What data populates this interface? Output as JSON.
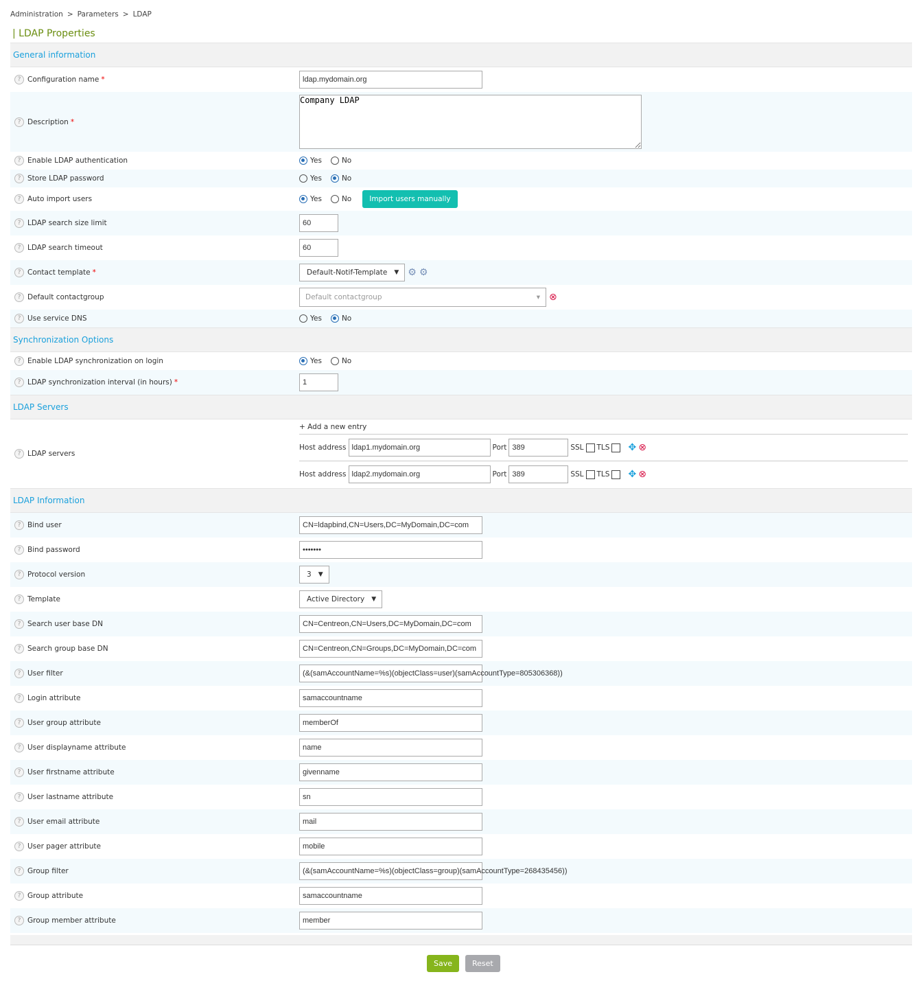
{
  "breadcrumb": [
    "Administration",
    "Parameters",
    "LDAP"
  ],
  "page_title": "| LDAP Properties",
  "colors": {
    "section": "#1aa0dc",
    "title": "#6a8d0f",
    "import_button": "#13bfb0",
    "save": "#86b51c",
    "reset": "#a8a9ad",
    "delete": "#d8194a"
  },
  "sections": [
    {
      "title": "General information",
      "rows": [
        {
          "label": "Configuration name",
          "required": true,
          "type": "text",
          "value": "ldap.mydomain.org",
          "w": 267,
          "h": 36
        },
        {
          "label": "Description",
          "required": true,
          "type": "textarea",
          "value": "Company LDAP",
          "h": 87
        },
        {
          "label": "Enable LDAP authentication",
          "type": "radio",
          "options": [
            "Yes",
            "No"
          ],
          "selected": "Yes",
          "h": 26
        },
        {
          "label": "Store LDAP password",
          "type": "radio",
          "options": [
            "Yes",
            "No"
          ],
          "selected": "No",
          "h": 26
        },
        {
          "label": "Auto import users",
          "type": "radio",
          "options": [
            "Yes",
            "No"
          ],
          "selected": "Yes",
          "button": "Import users manually",
          "h": 34
        },
        {
          "label": "LDAP search size limit",
          "type": "text",
          "value": "60",
          "w": 57,
          "h": 36
        },
        {
          "label": "LDAP search timeout",
          "type": "text",
          "value": "60",
          "w": 57,
          "h": 36
        },
        {
          "label": "Contact template",
          "required": true,
          "type": "select",
          "value": "Default-Notif-Template",
          "icons": [
            "gear-info-icon",
            "gear-icon"
          ],
          "h": 36
        },
        {
          "label": "Default contactgroup",
          "type": "select2",
          "placeholder": "Default contactgroup",
          "h": 36
        },
        {
          "label": "Use service DNS",
          "type": "radio",
          "options": [
            "Yes",
            "No"
          ],
          "selected": "No",
          "h": 26
        }
      ]
    },
    {
      "title": "Synchronization Options",
      "rows": [
        {
          "label": "Enable LDAP synchronization on login",
          "type": "radio",
          "options": [
            "Yes",
            "No"
          ],
          "selected": "Yes",
          "h": 26
        },
        {
          "label": "LDAP synchronization interval (in hours)",
          "required": true,
          "type": "text",
          "value": "1",
          "w": 57,
          "h": 36
        }
      ]
    },
    {
      "title": "LDAP Servers",
      "rows": [
        {
          "label": "LDAP servers",
          "type": "servers",
          "add": "+ Add a new entry",
          "host_label": "Host address",
          "port_label": "Port",
          "ssl_label": "SSL",
          "tls_label": "TLS",
          "servers": [
            {
              "host": "ldap1.mydomain.org",
              "port": "389",
              "ssl": false,
              "tls": false
            },
            {
              "host": "ldap2.mydomain.org",
              "port": "389",
              "ssl": false,
              "tls": false
            }
          ],
          "h": 100
        }
      ]
    },
    {
      "title": "LDAP Information",
      "rows": [
        {
          "label": "Bind user",
          "type": "text",
          "value": "CN=ldapbind,CN=Users,DC=MyDomain,DC=com",
          "w": 267,
          "h": 36
        },
        {
          "label": "Bind password",
          "type": "text",
          "value": "•••••••",
          "w": 267,
          "h": 36
        },
        {
          "label": "Protocol version",
          "type": "select",
          "value": "3",
          "h": 36
        },
        {
          "label": "Template",
          "type": "select",
          "value": "Active Directory",
          "h": 36
        },
        {
          "label": "Search user base DN",
          "type": "text",
          "value": "CN=Centreon,CN=Users,DC=MyDomain,DC=com",
          "w": 267,
          "h": 36
        },
        {
          "label": "Search group base DN",
          "type": "text",
          "value": "CN=Centreon,CN=Groups,DC=MyDomain,DC=com",
          "w": 267,
          "h": 36
        },
        {
          "label": "User filter",
          "type": "text",
          "value": "(&(samAccountName=%s)(objectClass=user)(samAccountType=805306368))",
          "w": 267,
          "h": 36
        },
        {
          "label": "Login attribute",
          "type": "text",
          "value": "samaccountname",
          "w": 267,
          "h": 36
        },
        {
          "label": "User group attribute",
          "type": "text",
          "value": "memberOf",
          "w": 267,
          "h": 36
        },
        {
          "label": "User displayname attribute",
          "type": "text",
          "value": "name",
          "w": 267,
          "h": 36
        },
        {
          "label": "User firstname attribute",
          "type": "text",
          "value": "givenname",
          "w": 267,
          "h": 36
        },
        {
          "label": "User lastname attribute",
          "type": "text",
          "value": "sn",
          "w": 267,
          "h": 36
        },
        {
          "label": "User email attribute",
          "type": "text",
          "value": "mail",
          "w": 267,
          "h": 36
        },
        {
          "label": "User pager attribute",
          "type": "text",
          "value": "mobile",
          "w": 267,
          "h": 36
        },
        {
          "label": "Group filter",
          "type": "text",
          "value": "(&(samAccountName=%s)(objectClass=group)(samAccountType=268435456))",
          "w": 267,
          "h": 36
        },
        {
          "label": "Group attribute",
          "type": "text",
          "value": "samaccountname",
          "w": 267,
          "h": 36
        },
        {
          "label": "Group member attribute",
          "type": "text",
          "value": "member",
          "w": 267,
          "h": 36
        }
      ]
    }
  ],
  "actions": {
    "save": "Save",
    "reset": "Reset"
  }
}
